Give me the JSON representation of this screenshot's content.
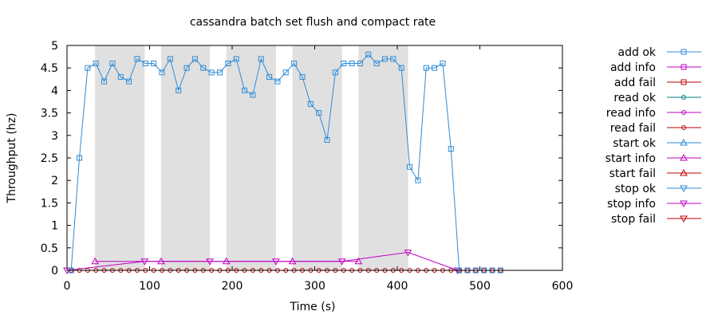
{
  "chart_data": {
    "type": "line",
    "title": "cassandra batch set flush and compact rate",
    "xlabel": "Time (s)",
    "ylabel": "Throughput (hz)",
    "xlim": [
      0,
      600
    ],
    "ylim": [
      0,
      5
    ],
    "x_ticks": [
      "0",
      "100",
      "200",
      "300",
      "400",
      "500",
      "600"
    ],
    "y_ticks": [
      "0",
      "0.5",
      "1",
      "1.5",
      "2",
      "2.5",
      "3",
      "3.5",
      "4",
      "4.5",
      "5"
    ],
    "grid": false,
    "legend_position": "right, outside plot",
    "shaded_intervals": [
      [
        34,
        94
      ],
      [
        114,
        173
      ],
      [
        193,
        253
      ],
      [
        273,
        333
      ],
      [
        353,
        413
      ]
    ],
    "shade_color": "#e0e0e0",
    "series": [
      {
        "name": "add ok",
        "color": "#2e8bd8",
        "marker": "square",
        "x": [
          5,
          15,
          25,
          35,
          45,
          55,
          65,
          75,
          85,
          95,
          105,
          115,
          125,
          135,
          145,
          155,
          165,
          175,
          185,
          195,
          205,
          215,
          225,
          235,
          245,
          255,
          265,
          275,
          285,
          295,
          305,
          315,
          325,
          335,
          345,
          355,
          365,
          375,
          385,
          395,
          405,
          415,
          425,
          435,
          445,
          455,
          465,
          475,
          485,
          495,
          505,
          515,
          525
        ],
        "values": [
          0,
          2.5,
          4.5,
          4.6,
          4.2,
          4.6,
          4.3,
          4.2,
          4.7,
          4.6,
          4.6,
          4.4,
          4.7,
          4.0,
          4.5,
          4.7,
          4.5,
          4.4,
          4.4,
          4.6,
          4.7,
          4.0,
          3.9,
          4.7,
          4.3,
          4.2,
          4.4,
          4.6,
          4.3,
          3.7,
          3.5,
          2.9,
          4.4,
          4.6,
          4.6,
          4.6,
          4.8,
          4.6,
          4.7,
          4.7,
          4.5,
          2.3,
          2.0,
          4.5,
          4.5,
          4.6,
          2.7,
          0,
          0,
          0,
          0,
          0,
          0
        ]
      },
      {
        "name": "add info",
        "color": "#c000c0",
        "marker": "square",
        "x": [],
        "values": []
      },
      {
        "name": "add fail",
        "color": "#c00000",
        "marker": "square",
        "x": [],
        "values": []
      },
      {
        "name": "read ok",
        "color": "#008080",
        "marker": "circle",
        "x": [],
        "values": []
      },
      {
        "name": "read info",
        "color": "#c000c0",
        "marker": "circle",
        "x": [],
        "values": []
      },
      {
        "name": "read fail",
        "color": "#c00000",
        "marker": "circle",
        "x": [
          5,
          15,
          25,
          35,
          45,
          55,
          65,
          75,
          85,
          95,
          105,
          115,
          125,
          135,
          145,
          155,
          165,
          175,
          185,
          195,
          205,
          215,
          225,
          235,
          245,
          255,
          265,
          275,
          285,
          295,
          305,
          315,
          325,
          335,
          345,
          355,
          365,
          375,
          385,
          395,
          405,
          415,
          425,
          435,
          445,
          455,
          465,
          475,
          485,
          495,
          505,
          515,
          525
        ],
        "values": [
          0,
          0,
          0,
          0,
          0,
          0,
          0,
          0,
          0,
          0,
          0,
          0,
          0,
          0,
          0,
          0,
          0,
          0,
          0,
          0,
          0,
          0,
          0,
          0,
          0,
          0,
          0,
          0,
          0,
          0,
          0,
          0,
          0,
          0,
          0,
          0,
          0,
          0,
          0,
          0,
          0,
          0,
          0,
          0,
          0,
          0,
          0,
          0,
          0,
          0,
          0,
          0,
          0
        ]
      },
      {
        "name": "start ok",
        "color": "#2e8bd8",
        "marker": "triangle-up",
        "x": [],
        "values": []
      },
      {
        "name": "start info",
        "color": "#c000c0",
        "marker": "triangle-up",
        "x": [
          34,
          114,
          193,
          273,
          353
        ],
        "values": [
          0.2,
          0.2,
          0.2,
          0.2,
          0.2
        ]
      },
      {
        "name": "start fail",
        "color": "#c00000",
        "marker": "triangle-up",
        "x": [],
        "values": []
      },
      {
        "name": "stop ok",
        "color": "#2e8bd8",
        "marker": "triangle-down",
        "x": [],
        "values": []
      },
      {
        "name": "stop info",
        "color": "#c000c0",
        "marker": "triangle-down",
        "x": [
          0,
          94,
          173,
          253,
          333,
          413,
          473
        ],
        "values": [
          0,
          0.2,
          0.2,
          0.2,
          0.2,
          0.4,
          0
        ]
      },
      {
        "name": "stop fail",
        "color": "#c00000",
        "marker": "triangle-down",
        "x": [],
        "values": []
      }
    ]
  }
}
